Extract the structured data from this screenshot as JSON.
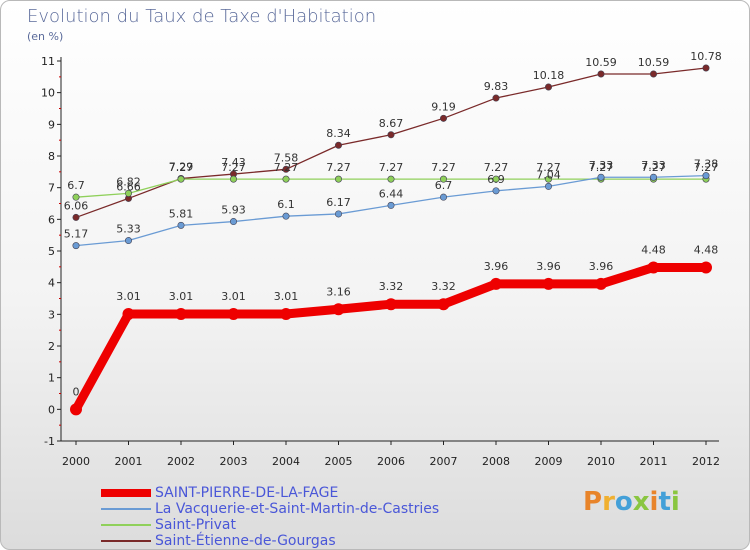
{
  "header": {
    "title": "Evolution du Taux de Taxe d'Habitation",
    "subtitle": "(en %)"
  },
  "logo": {
    "text": "Proxiti"
  },
  "chart_data": {
    "type": "line",
    "title": "Evolution du Taux de Taxe d'Habitation",
    "subtitle": "(en %)",
    "xlabel": "",
    "ylabel": "",
    "x": [
      "2000",
      "2001",
      "2002",
      "2003",
      "2004",
      "2005",
      "2006",
      "2007",
      "2008",
      "2009",
      "2010",
      "2011",
      "2012"
    ],
    "ylim": [
      -1,
      11
    ],
    "yticks": [
      "-1",
      "0",
      "1",
      "2",
      "3",
      "4",
      "5",
      "6",
      "7",
      "8",
      "9",
      "10",
      "11"
    ],
    "grid": false,
    "legend_position": "bottom",
    "series": [
      {
        "name": "SAINT-PIERRE-DE-LA-FAGE",
        "color": "#ee0000",
        "values": [
          0,
          3.01,
          3.01,
          3.01,
          3.01,
          3.16,
          3.32,
          3.32,
          3.96,
          3.96,
          3.96,
          4.48,
          4.48
        ],
        "labels": [
          "0",
          "3.01",
          "3.01",
          "3.01",
          "3.01",
          "3.16",
          "3.32",
          "3.32",
          "3.96",
          "3.96",
          "3.96",
          "4.48",
          "4.48"
        ]
      },
      {
        "name": "La Vacquerie-et-Saint-Martin-de-Castries",
        "color": "#6a9bd4",
        "values": [
          5.17,
          5.33,
          5.81,
          5.93,
          6.1,
          6.17,
          6.44,
          6.7,
          6.9,
          7.04,
          7.33,
          7.33,
          7.38
        ],
        "labels": [
          "5.17",
          "5.33",
          "5.81",
          "5.93",
          "6.1",
          "6.17",
          "6.44",
          "6.7",
          "6.9",
          "7.04",
          "7.33",
          "7.33",
          "7.38"
        ]
      },
      {
        "name": "Saint-Privat",
        "color": "#8fd05a",
        "values": [
          6.7,
          6.82,
          7.27,
          7.27,
          7.27,
          7.27,
          7.27,
          7.27,
          7.27,
          7.27,
          7.27,
          7.27,
          7.27
        ],
        "labels": [
          "6.7",
          "6.82",
          "7.27",
          "7.27",
          "7.27",
          "7.27",
          "7.27",
          "7.27",
          "7.27",
          "7.27",
          "7.27",
          "7.27",
          "7.27"
        ]
      },
      {
        "name": "Saint-Étienne-de-Gourgas",
        "color": "#7a2a2a",
        "values": [
          6.06,
          6.66,
          7.29,
          7.43,
          7.58,
          8.34,
          8.67,
          9.19,
          9.83,
          10.18,
          10.59,
          10.59,
          10.78
        ],
        "labels": [
          "6.06",
          "6.66",
          "7.29",
          "7.43",
          "7.58",
          "8.34",
          "8.67",
          "9.19",
          "9.83",
          "10.18",
          "10.59",
          "10.59",
          "10.78"
        ]
      }
    ]
  }
}
